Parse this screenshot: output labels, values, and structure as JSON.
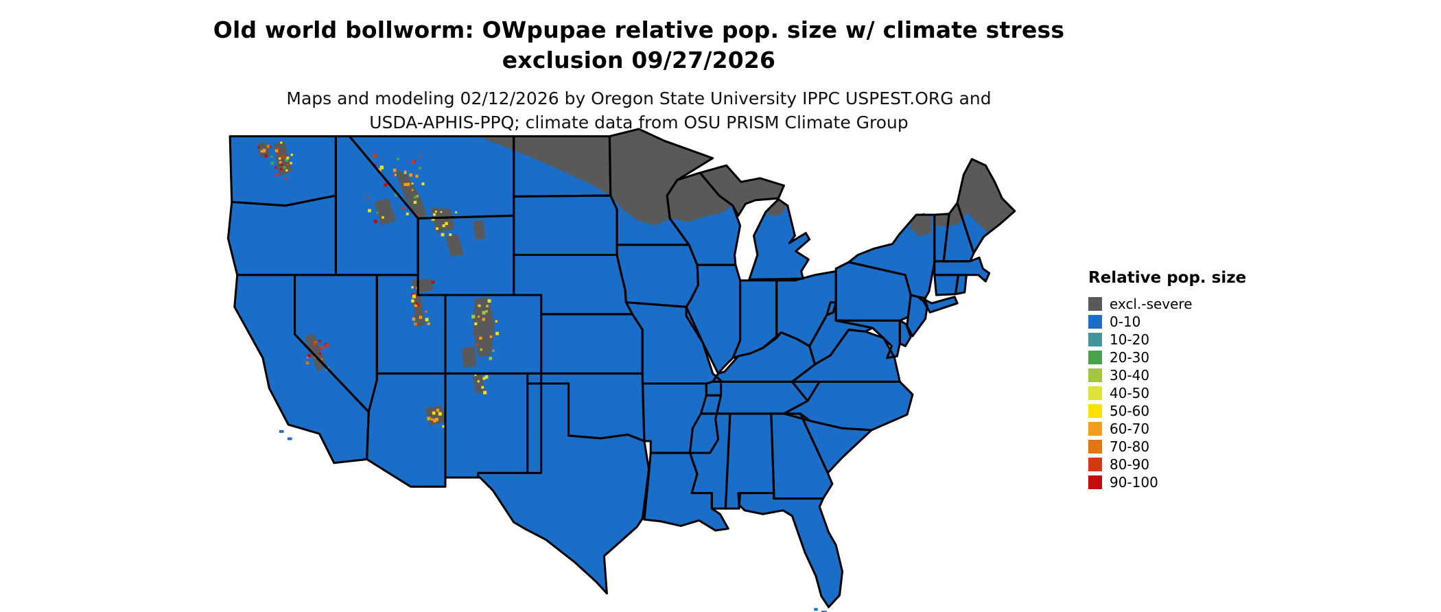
{
  "header": {
    "title_line1": "Old world bollworm: OWpupae relative pop. size w/ climate stress",
    "title_line2": "exclusion 09/27/2026",
    "subtitle_line1": "Maps and modeling 02/12/2026 by Oregon State University IPPC USPEST.ORG and",
    "subtitle_line2": "USDA-APHIS-PPQ; climate data from OSU PRISM Climate Group"
  },
  "legend": {
    "title": "Relative pop. size",
    "items": [
      {
        "label": "excl.-severe",
        "color": "#595959"
      },
      {
        "label": "0-10",
        "color": "#1b6ec8"
      },
      {
        "label": "10-20",
        "color": "#44949b"
      },
      {
        "label": "20-30",
        "color": "#4aa34a"
      },
      {
        "label": "30-40",
        "color": "#a2c63c"
      },
      {
        "label": "40-50",
        "color": "#dde33b"
      },
      {
        "label": "50-60",
        "color": "#ffdf00"
      },
      {
        "label": "60-70",
        "color": "#f29b1d"
      },
      {
        "label": "70-80",
        "color": "#e2750f"
      },
      {
        "label": "80-90",
        "color": "#cf3a10"
      },
      {
        "label": "90-100",
        "color": "#c40d0d"
      }
    ]
  },
  "map": {
    "region": "Conterminous United States",
    "base_fill_class": "0-10",
    "exclusion_fill_class": "excl.-severe",
    "border_color": "#000000",
    "background": "#ffffff"
  }
}
